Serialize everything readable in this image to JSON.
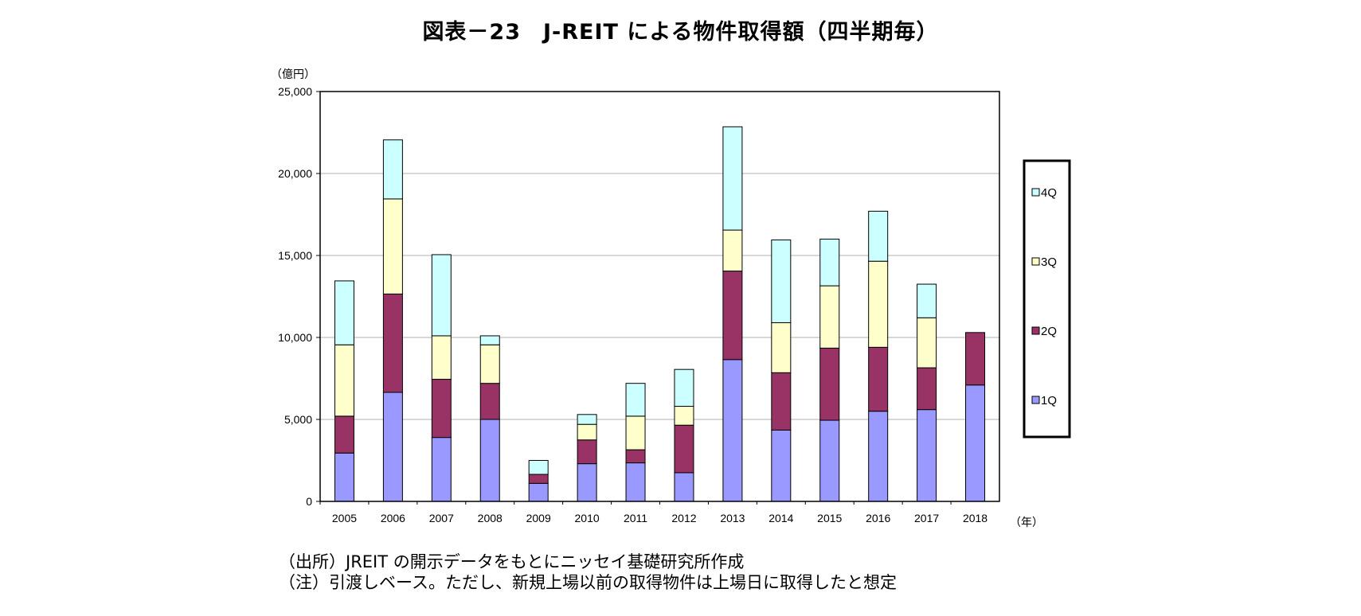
{
  "chart_data": {
    "type": "bar",
    "stacked": true,
    "title": "図表－23　J-REIT による物件取得額（四半期毎）",
    "y_unit": "（億円）",
    "x_unit": "（年）",
    "ylim": [
      0,
      25000
    ],
    "y_ticks": [
      "0",
      "5,000",
      "10,000",
      "15,000",
      "20,000",
      "25,000"
    ],
    "y_tick_values": [
      0,
      5000,
      10000,
      15000,
      20000,
      25000
    ],
    "grid": true,
    "legend_position": "right",
    "categories": [
      "2005",
      "2006",
      "2007",
      "2008",
      "2009",
      "2010",
      "2011",
      "2012",
      "2013",
      "2014",
      "2015",
      "2016",
      "2017",
      "2018"
    ],
    "series": [
      {
        "name": "1Q",
        "color": "#9999ff",
        "values": [
          2950,
          6650,
          3900,
          5000,
          1100,
          2300,
          2350,
          1750,
          8650,
          4350,
          4950,
          5500,
          5600,
          7100
        ]
      },
      {
        "name": "2Q",
        "color": "#993366",
        "values": [
          2250,
          6000,
          3550,
          2200,
          550,
          1450,
          800,
          2900,
          5400,
          3500,
          4400,
          3900,
          2550,
          3200
        ]
      },
      {
        "name": "3Q",
        "color": "#ffffcc",
        "values": [
          4350,
          5800,
          2650,
          2350,
          0,
          950,
          2050,
          1150,
          2500,
          3050,
          3800,
          5250,
          3050,
          0
        ]
      },
      {
        "name": "4Q",
        "color": "#ccffff",
        "values": [
          3900,
          3600,
          4950,
          550,
          850,
          600,
          2000,
          2250,
          6300,
          5050,
          2850,
          3050,
          2050,
          0
        ]
      }
    ]
  },
  "notes": {
    "source": "（出所）JREIT の開示データをもとにニッセイ基礎研究所作成",
    "note": "（注）引渡しベース。ただし、新規上場以前の取得物件は上場日に取得したと想定"
  }
}
